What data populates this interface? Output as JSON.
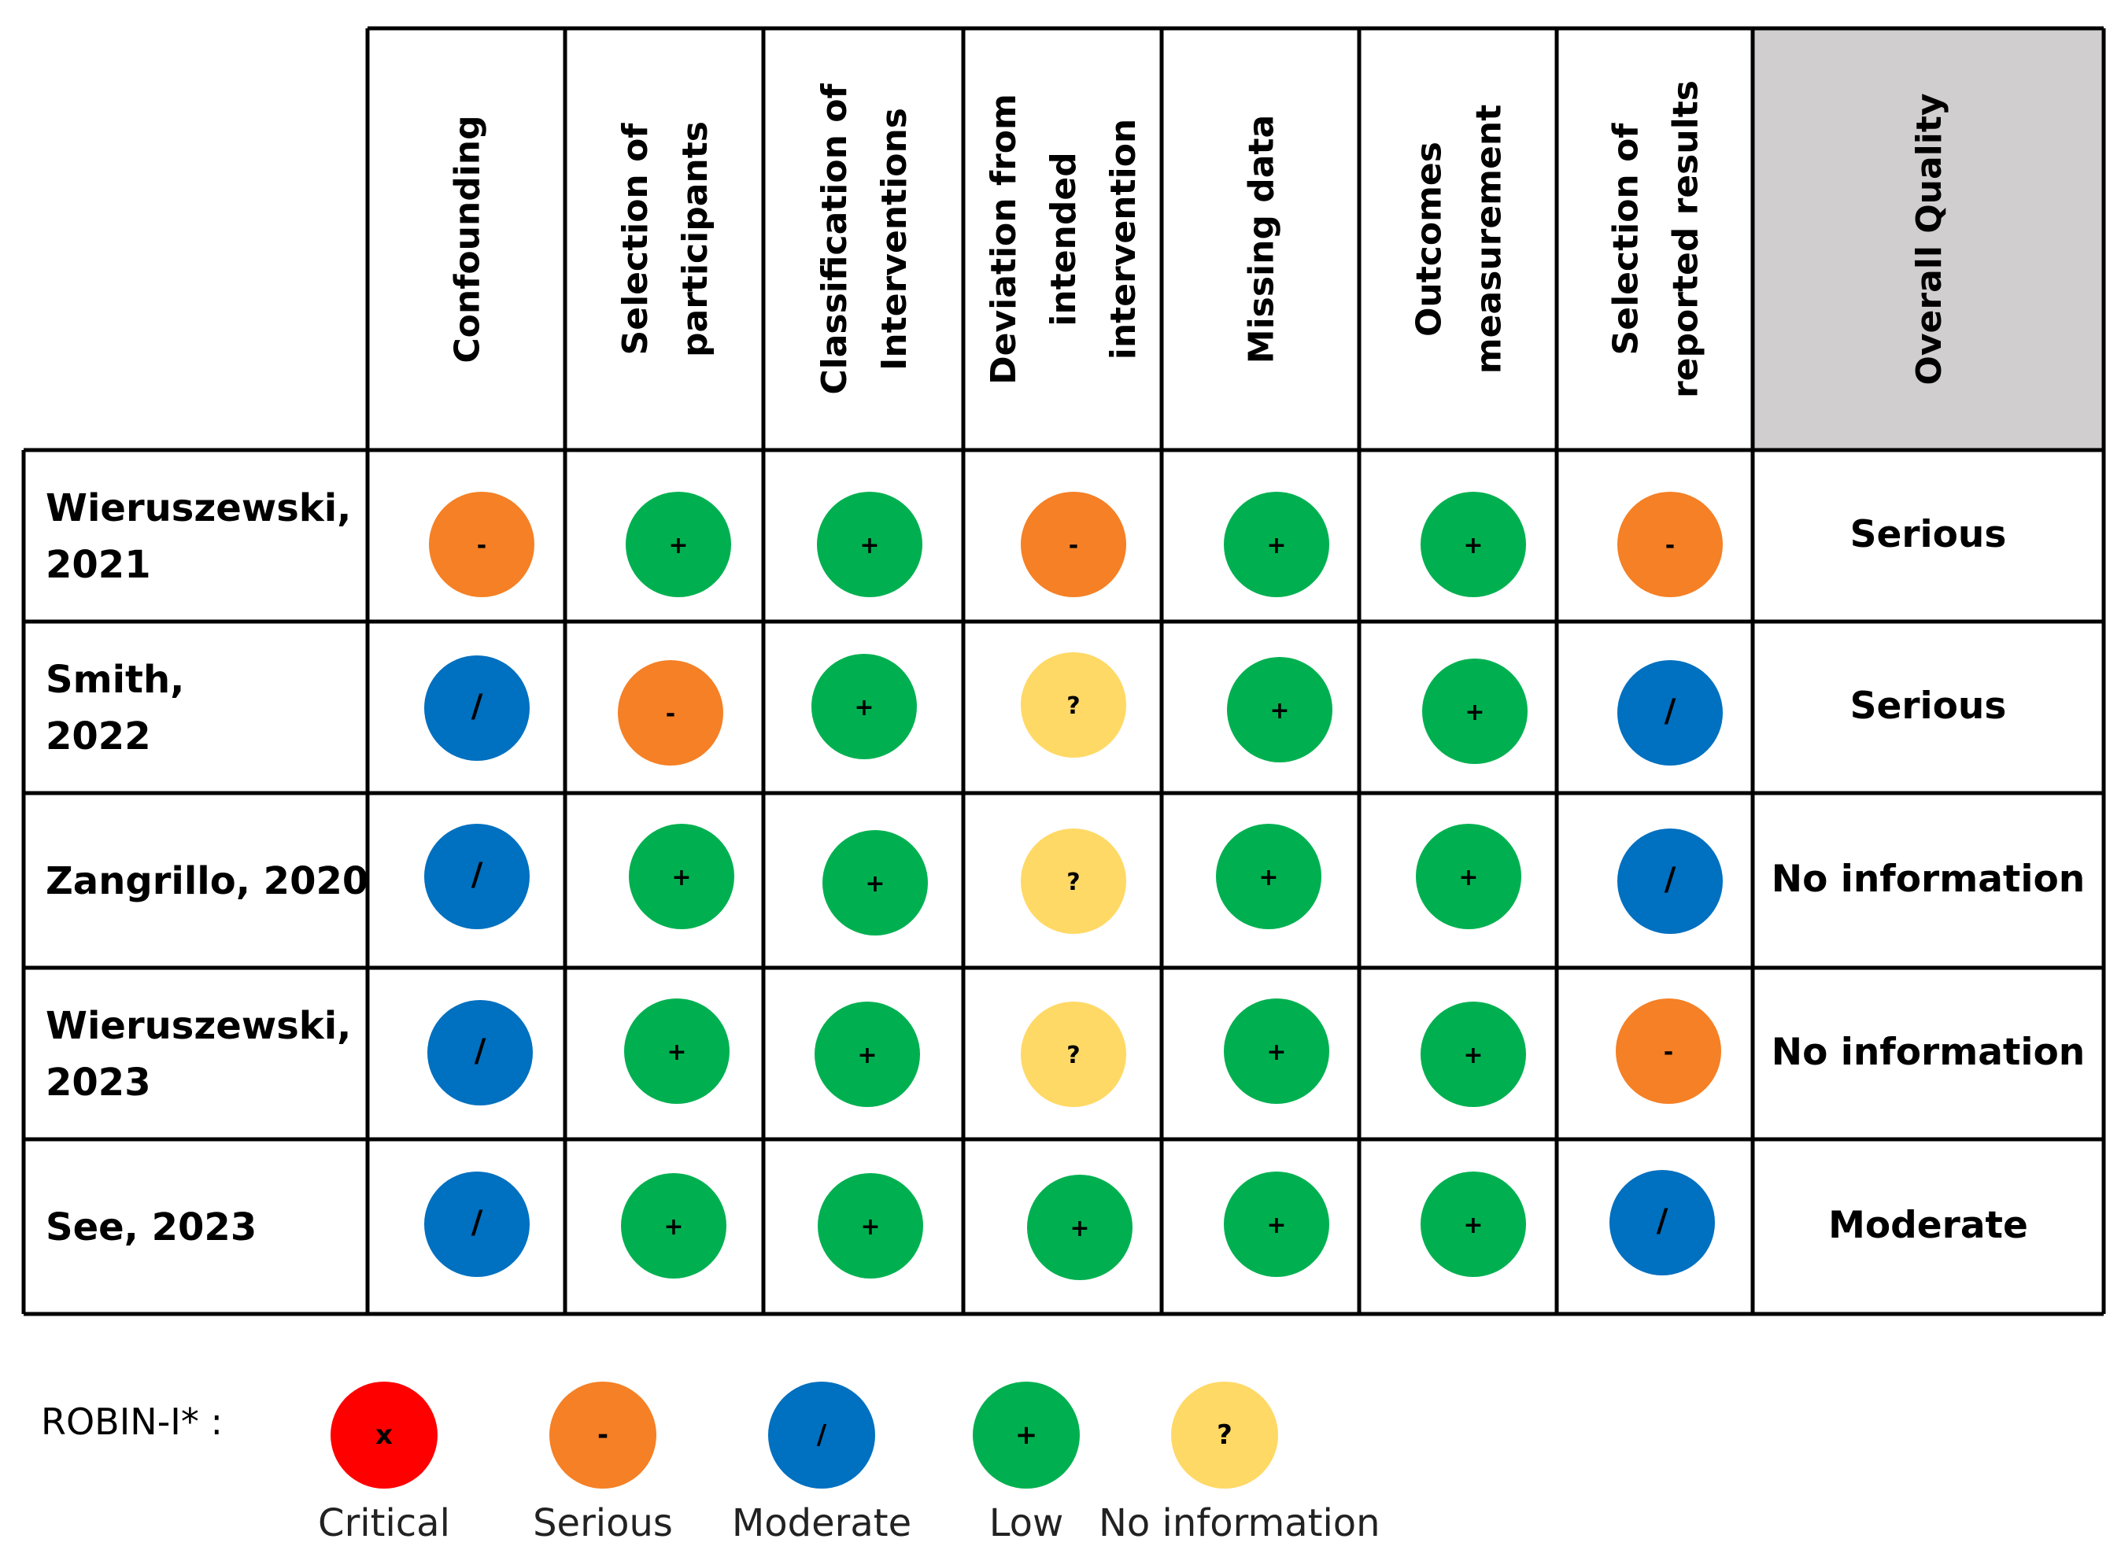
{
  "chart_data": {
    "type": "table",
    "title": "",
    "domains": [
      {
        "key": "confounding",
        "lines": [
          "Confounding"
        ]
      },
      {
        "key": "selection_participants",
        "lines": [
          "Selection of",
          "participants"
        ]
      },
      {
        "key": "classification_interventions",
        "lines": [
          "Classification of",
          "Interventions"
        ]
      },
      {
        "key": "deviation_intervention",
        "lines": [
          "Deviation from",
          "intended",
          "intervention"
        ]
      },
      {
        "key": "missing_data",
        "lines": [
          "Missing data"
        ]
      },
      {
        "key": "outcomes_measurement",
        "lines": [
          "Outcomes",
          "measurement"
        ]
      },
      {
        "key": "selection_reported_results",
        "lines": [
          "Selection of",
          "reported results"
        ]
      },
      {
        "key": "overall_quality",
        "lines": [
          "Overall Quality"
        ]
      }
    ],
    "studies": [
      {
        "lines": [
          "Wieruszewski,",
          "2021"
        ],
        "judgements": [
          "serious",
          "low",
          "low",
          "serious",
          "low",
          "low",
          "serious"
        ],
        "overall": "Serious"
      },
      {
        "lines": [
          "Smith,",
          "2022"
        ],
        "judgements": [
          "moderate",
          "serious",
          "low",
          "no_information",
          "low",
          "low",
          "moderate"
        ],
        "overall": "Serious"
      },
      {
        "lines": [
          "Zangrillo, 2020"
        ],
        "judgements": [
          "moderate",
          "low",
          "low",
          "no_information",
          "low",
          "low",
          "moderate"
        ],
        "overall": "No information"
      },
      {
        "lines": [
          "Wieruszewski,",
          "2023"
        ],
        "judgements": [
          "moderate",
          "low",
          "low",
          "no_information",
          "low",
          "low",
          "serious"
        ],
        "overall": "No information"
      },
      {
        "lines": [
          "See, 2023"
        ],
        "judgements": [
          "moderate",
          "low",
          "low",
          "low",
          "low",
          "low",
          "moderate"
        ],
        "overall": "Moderate"
      }
    ],
    "levels": {
      "critical": {
        "symbol": "x",
        "label": "Critical",
        "color": "#ff0000"
      },
      "serious": {
        "symbol": "-",
        "label": "Serious",
        "color": "#f58025"
      },
      "moderate": {
        "symbol": "/",
        "label": "Moderate",
        "color": "#0070c0"
      },
      "low": {
        "symbol": "+",
        "label": "Low",
        "color": "#00b050"
      },
      "no_information": {
        "symbol": "?",
        "label": "No information",
        "color": "#ffd965"
      }
    },
    "legend_order": [
      "critical",
      "serious",
      "moderate",
      "low",
      "no_information"
    ],
    "header_highlight_color": "#d0cece"
  },
  "legend": {
    "title": "ROBIN-I* :"
  }
}
